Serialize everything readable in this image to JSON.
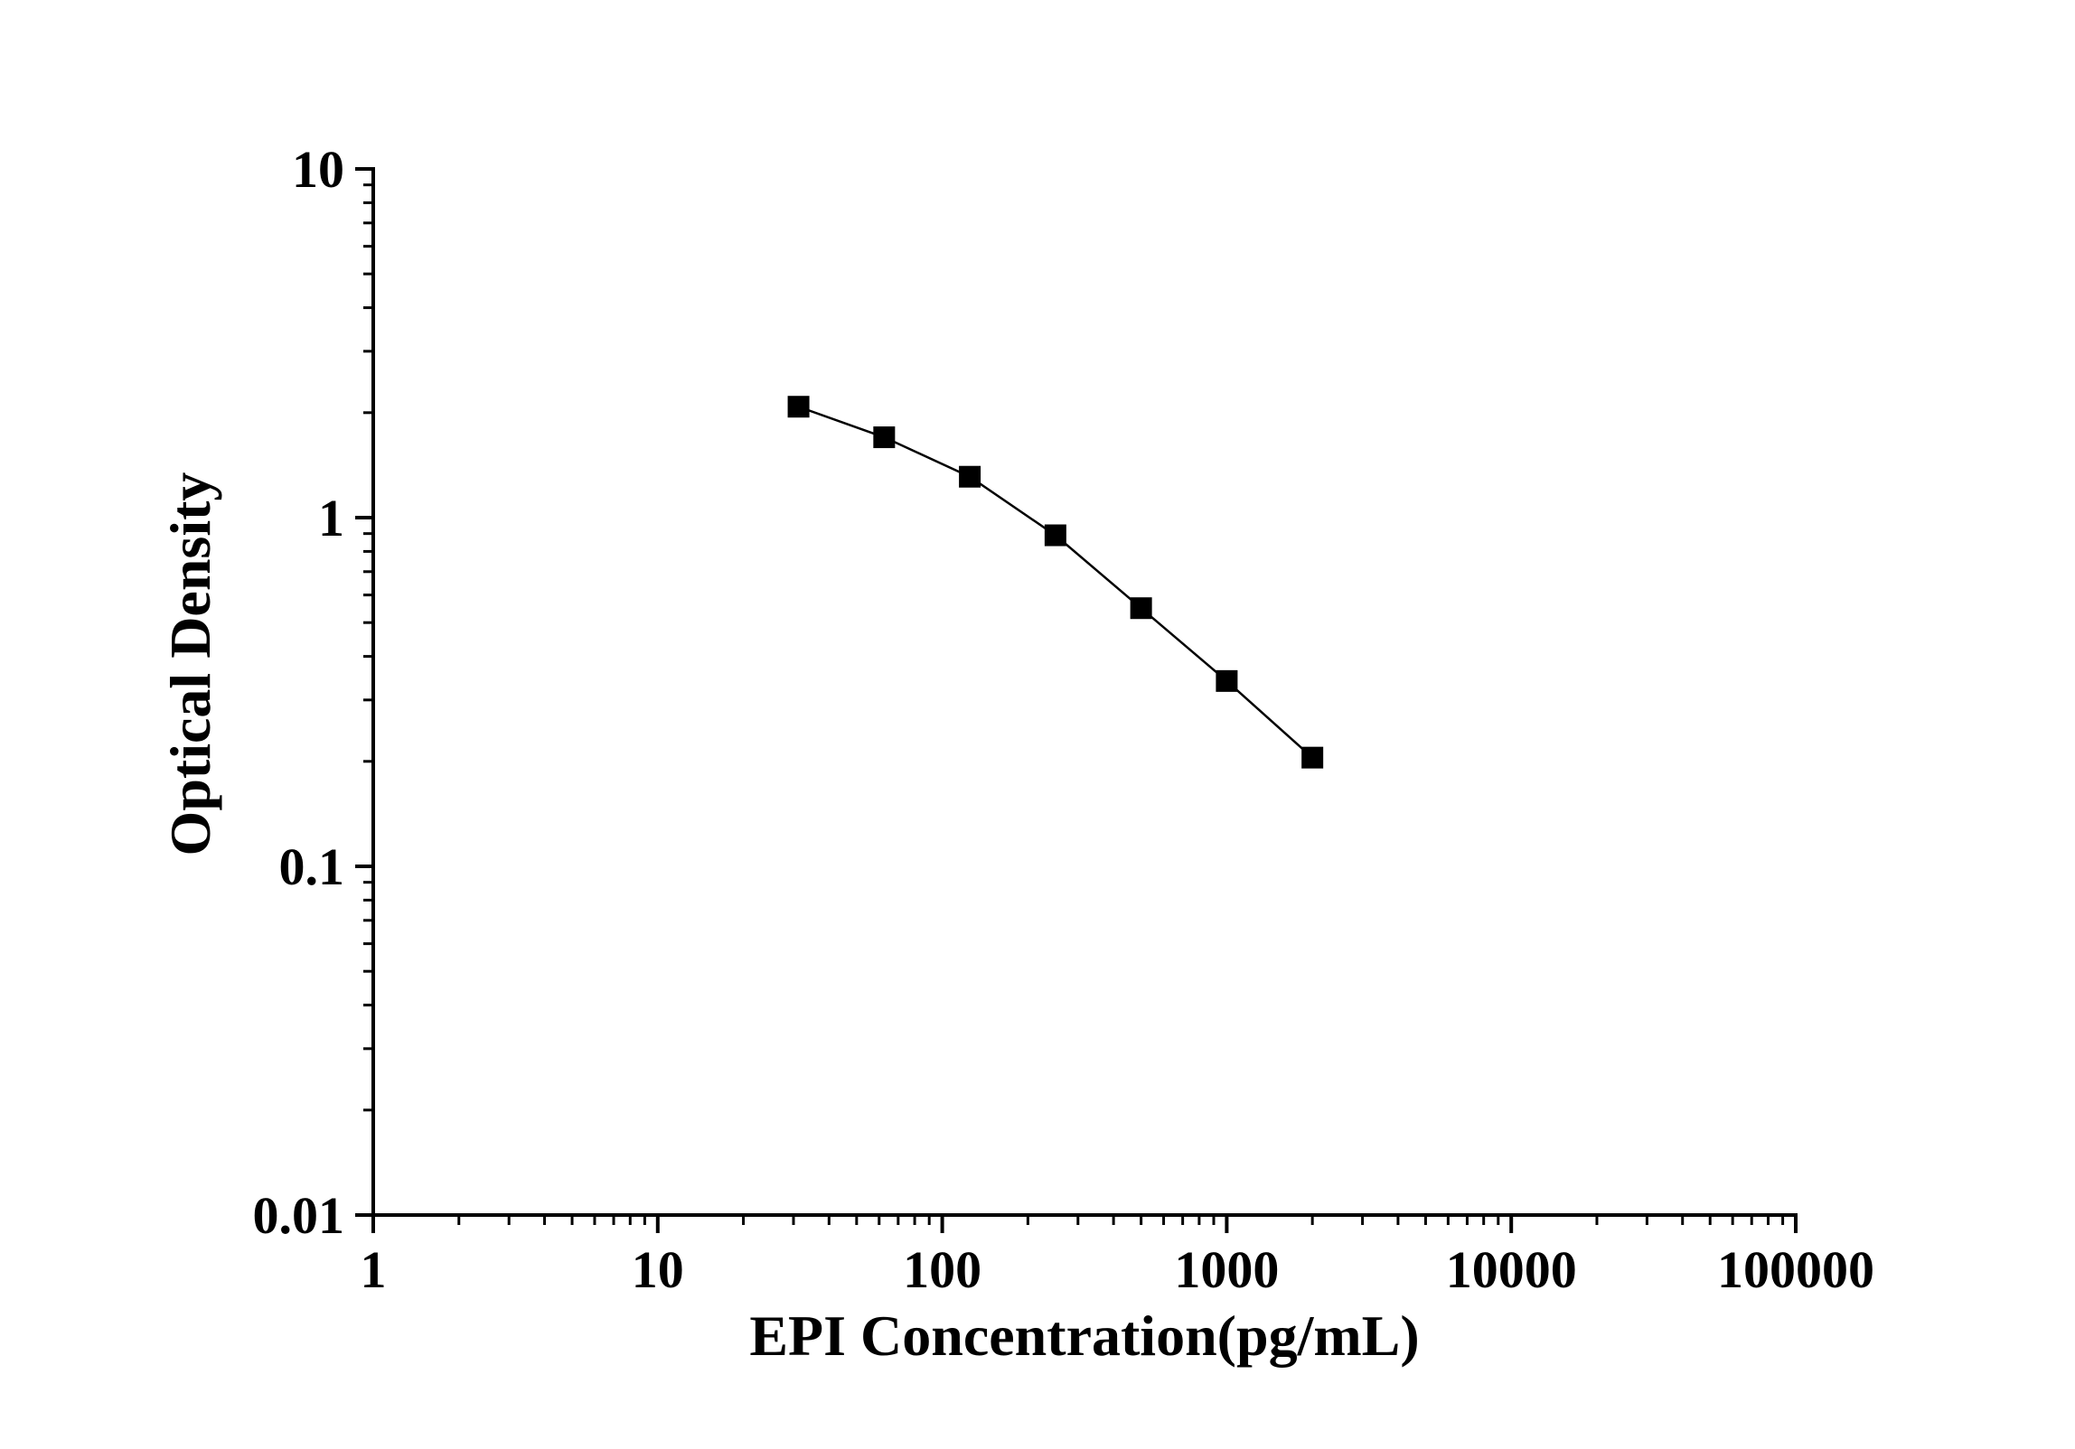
{
  "chart_data": {
    "type": "line",
    "title": "",
    "xlabel": "EPI Concentration(pg/mL)",
    "ylabel": "Optical Density",
    "x_scale": "log",
    "y_scale": "log",
    "xlim": [
      1,
      100000
    ],
    "ylim": [
      0.01,
      10
    ],
    "x_ticks": [
      "1",
      "10",
      "100",
      "1000",
      "10000",
      "100000"
    ],
    "y_ticks": [
      "0.01",
      "0.1",
      "1",
      "10"
    ],
    "grid": false,
    "legend": "none",
    "series": [
      {
        "x": [
          31.25,
          62.5,
          125,
          250,
          500,
          1000,
          2000
        ],
        "y": [
          2.08,
          1.7,
          1.31,
          0.89,
          0.55,
          0.34,
          0.205
        ],
        "marker": "square",
        "color": "#000000"
      }
    ]
  }
}
